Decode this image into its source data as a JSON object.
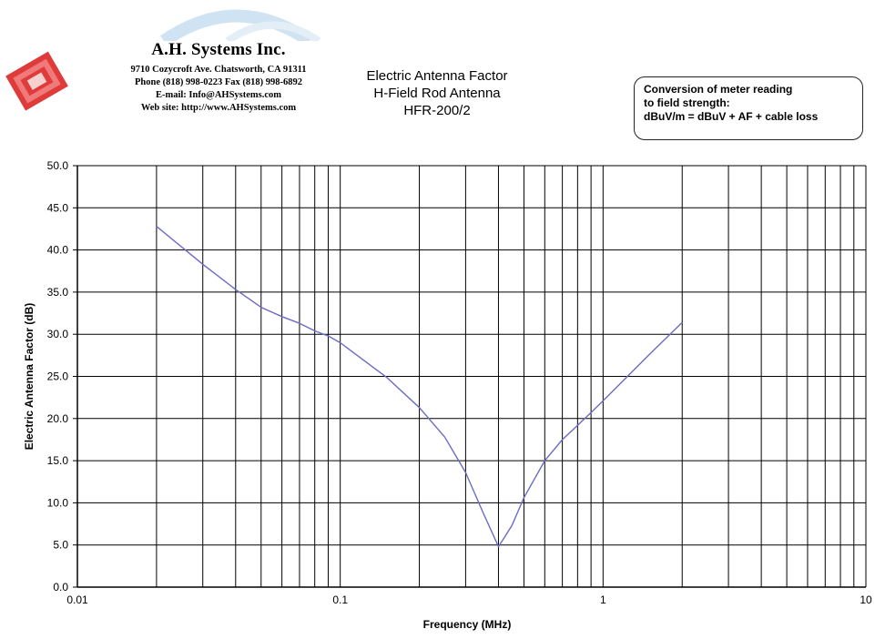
{
  "company": {
    "name": "A.H. Systems Inc.",
    "address": "9710 Cozycroft Ave. Chatsworth, CA 91311",
    "phone": "Phone (818) 998-0223 Fax (818) 998-6892",
    "email": "E-mail: Info@AHSystems.com",
    "website": "Web site: http://www.AHSystems.com"
  },
  "title_lines": {
    "line1": "Electric Antenna Factor",
    "line2": "H-Field Rod Antenna",
    "line3": "HFR-200/2"
  },
  "conversion_box": {
    "line1": "Conversion of meter reading",
    "line2": "to field strength:",
    "line3": "dBuV/m = dBuV + AF + cable loss"
  },
  "colors": {
    "line": "#6b6bc4",
    "grid": "#000000",
    "logo_red": "#e03b3b",
    "swoosh": "#cfe3f2"
  },
  "chart_data": {
    "type": "line",
    "title": "Electric Antenna Factor",
    "xlabel": "Frequency (MHz)",
    "ylabel": "Electric Antenna Factor (dB)",
    "xscale": "log",
    "xlim": [
      0.01,
      10
    ],
    "ylim": [
      0,
      50
    ],
    "x_tick_labels": [
      "0.01",
      "0.1",
      "1",
      "10"
    ],
    "y_tick_labels": [
      "0.0",
      "5.0",
      "10.0",
      "15.0",
      "20.0",
      "25.0",
      "30.0",
      "35.0",
      "40.0",
      "45.0",
      "50.0"
    ],
    "grid": true,
    "series": [
      {
        "x": [
          0.02,
          0.03,
          0.04,
          0.05,
          0.06,
          0.07,
          0.08,
          0.09,
          0.1,
          0.15,
          0.2,
          0.25,
          0.3,
          0.35,
          0.4,
          0.45,
          0.5,
          0.6,
          0.7,
          0.8,
          0.9,
          1,
          1.5,
          2
        ],
        "values": [
          42.8,
          38.3,
          35.3,
          33.2,
          32.1,
          31.3,
          30.4,
          29.8,
          29.0,
          24.9,
          21.3,
          17.8,
          13.6,
          8.8,
          4.8,
          7.3,
          10.6,
          15.0,
          17.5,
          19.2,
          20.7,
          22.1,
          27.6,
          31.4
        ]
      }
    ]
  }
}
